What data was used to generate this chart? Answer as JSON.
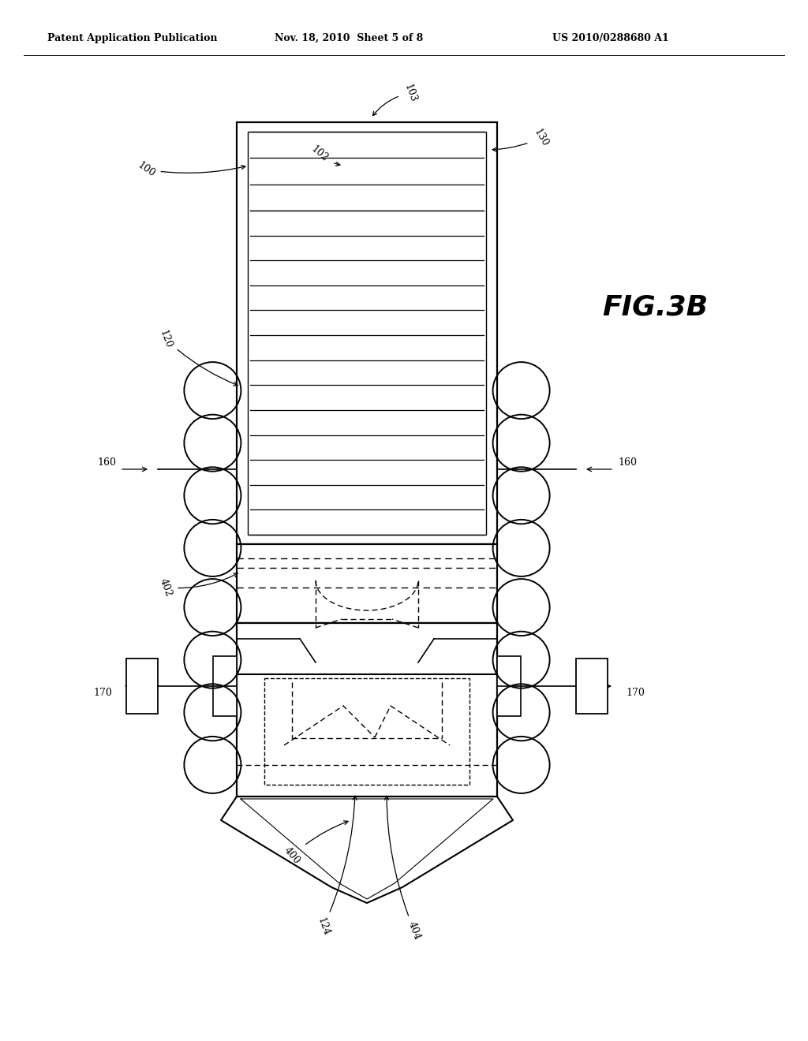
{
  "bg_color": "#ffffff",
  "header_left": "Patent Application Publication",
  "header_mid": "Nov. 18, 2010  Sheet 5 of 8",
  "header_right": "US 2010/0288680 A1",
  "fig_label": "FIG.3B",
  "lw_main": 1.6,
  "lw_inner": 1.1,
  "lw_line": 0.9,
  "lw_dash": 1.0,
  "lw_coil": 1.4,
  "label_fs": 9,
  "header_fs": 9,
  "fig_fs": 26
}
